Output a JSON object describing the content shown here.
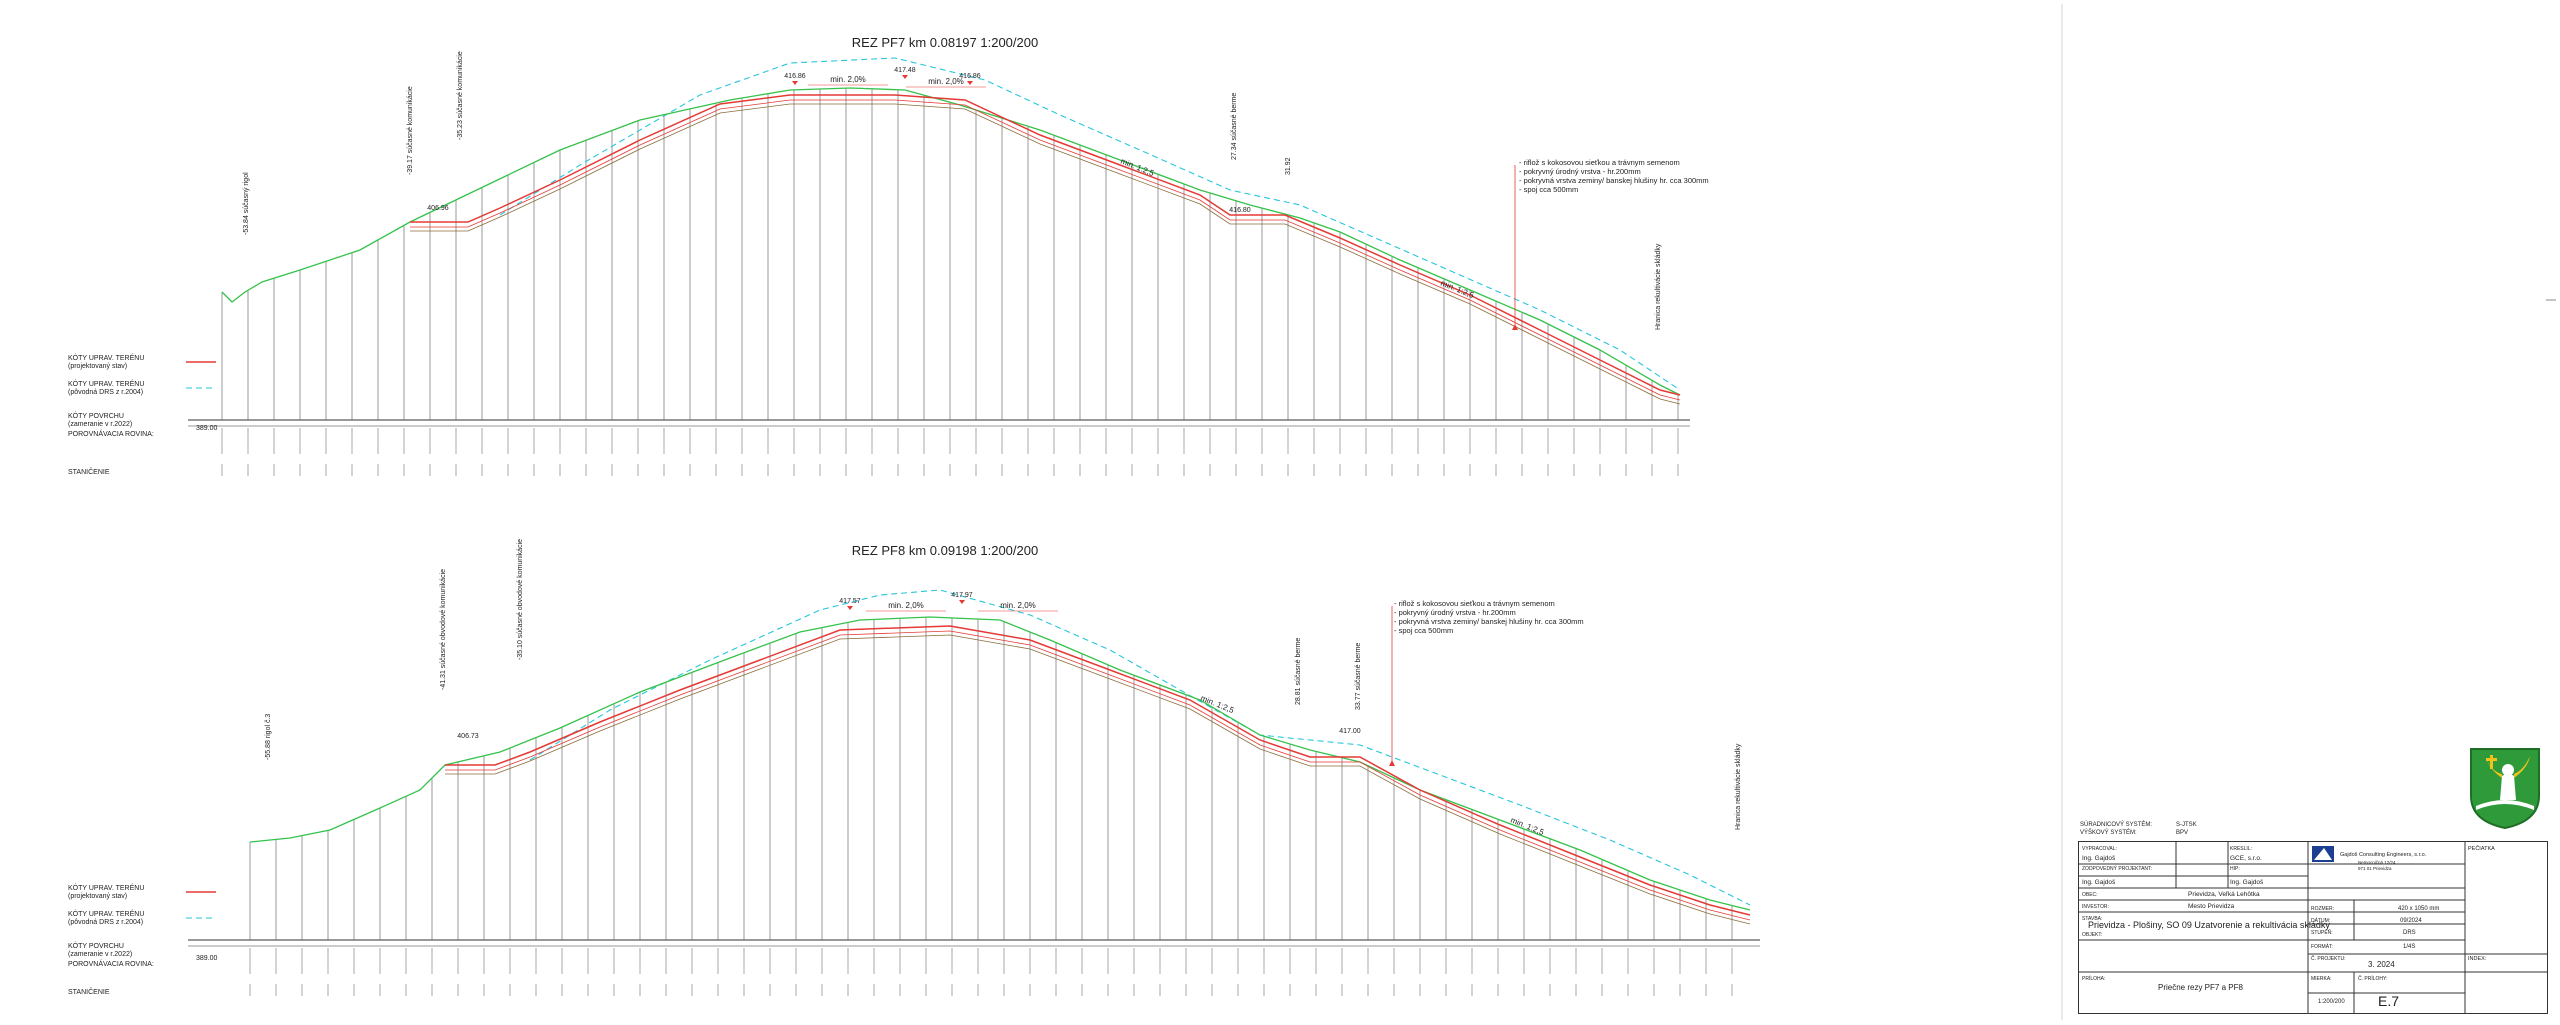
{
  "sections": [
    {
      "id": "pf7",
      "title": "REZ PF7  km 0.08197  1:200/200",
      "legend": {
        "design_line": [
          "KÓTY UPRAV. TERÉNU",
          "(projektovaný stav)"
        ],
        "original_line": [
          "KÓTY UPRAV. TERÉNU",
          "(pôvodná DRS z r.2004)"
        ],
        "surface_line": [
          "KÓTY POVRCHU",
          "(zameranie v r.2022)"
        ],
        "reference": "POROVNÁVACIA ROVINA:",
        "reference_value": "389.00",
        "stations_label": "STANIČENIE"
      },
      "top_labels": [
        "416.86",
        "417.48",
        "416.86",
        "min. 2,0%",
        "min. 2,0%"
      ],
      "vertical_labels": [
        "-39.17   súčasné komunikácie",
        "-35.23  súčasné komunikácie",
        "-53.84   súčasný rigol",
        "27.34  súčasné berme",
        "31.92",
        "Hranica rekultivácie skládky"
      ],
      "slope_labels": [
        "min. 1:2,5",
        "min. 1:2,5"
      ],
      "berm_labels": [
        "406.96",
        "416.80"
      ],
      "note": [
        "- riflož s kokosovou sieťkou a trávnym semenom",
        "- pokryvný úrodný vrstva - hr.200mm",
        "- pokryvná vrstva zeminy/ banskej hlušiny hr. cca 300mm",
        "- spoj      cca 500mm"
      ]
    },
    {
      "id": "pf8",
      "title": "REZ PF8  km 0.09198  1:200/200",
      "legend": {
        "design_line": [
          "KÓTY UPRAV. TERÉNU",
          "(projektovaný stav)"
        ],
        "original_line": [
          "KÓTY UPRAV. TERÉNU",
          "(pôvodná DRS z r.2004)"
        ],
        "surface_line": [
          "KÓTY POVRCHU",
          "(zameranie v r.2022)"
        ],
        "reference": "POROVNÁVACIA ROVINA:",
        "reference_value": "389.00",
        "stations_label": "STANIČENIE"
      },
      "top_labels": [
        "417.57",
        "417.97",
        "min. 2,0%",
        "min. 2,0%"
      ],
      "vertical_labels": [
        "-41.31  súčasné obvodové komunikácie",
        "-35.10  súčasné obvodové komunikácie",
        "-55.88   rigol č.3",
        "28.81  súčasné berme",
        "33.77  súčasné berme",
        "Hranica rekultivácie skládky"
      ],
      "slope_labels": [
        "min. 1:2,5",
        "min. 1:2,5"
      ],
      "berm_labels": [
        "406.73",
        "417.00"
      ],
      "note": [
        "- riflož s kokosovou sieťkou a trávnym semenom",
        "- pokryvný úrodný vrstva - hr.200mm",
        "- pokryvná vrstva zeminy/ banskej hlušiny hr. cca 300mm",
        "- spoj      cca 500mm"
      ]
    }
  ],
  "title_block": {
    "coord_system_label": "SÚRADNICOVÝ SYSTÉM:",
    "coord_system_value": "S-JTSK",
    "height_system_label": "VÝŠKOVÝ SYSTÉM:",
    "height_system_value": "BPV",
    "prepared_label": "VYPRACOVAL:",
    "prepared_value": "Ing. Gajdoš",
    "drew_label": "KRESLIL:",
    "drew_value": "GCE, s.r.o.",
    "responsible_label": "ZODPOVEDNÝ PROJEKTANT:",
    "responsible_value": "Ing. Gajdoš",
    "hip_label": "HIP:",
    "hip_value": "Ing. Gajdoš",
    "company_name": "Gajdoš Consulting Engineers, s.r.o.",
    "company_address": [
      "Nemocničná 12/24",
      "971 01 Prievidza"
    ],
    "stamp_label": "PEČIATKA",
    "place_label": "OBEC:",
    "place_value": "Prievidza, Veľká Lehôtka",
    "investor_label": "INVESTOR:",
    "investor_value": "Mesto Prievidza",
    "format_label": "ROZMER:",
    "format_value": "420 x 1050 mm",
    "date_label": "DÁTUM:",
    "date_value": "09/2024",
    "stage_label": "STUPEŇ:",
    "stage_value": "DRS",
    "project_label": "STAVBA:",
    "object_label": "OBJEKT:",
    "project_value": "Prievidza - Plošiny, SO 09 Uzatvorenie a rekultivácia skládky",
    "format_code_label": "FORMÁT:",
    "format_code_value": "1/4S",
    "project_no_label": "Č. PROJEKTU:",
    "project_no_value": "3. 2024",
    "attachment_label": "PRÍLOHA:",
    "attachment_value": "Priečne rezy PF7 a PF8",
    "scale_label": "MIERKA:",
    "scale_value": "1:200/200",
    "sheet_no_label": "Č. PRÍLOHY:",
    "sheet_no_value": "E.7",
    "index_label": "INDEX:"
  }
}
